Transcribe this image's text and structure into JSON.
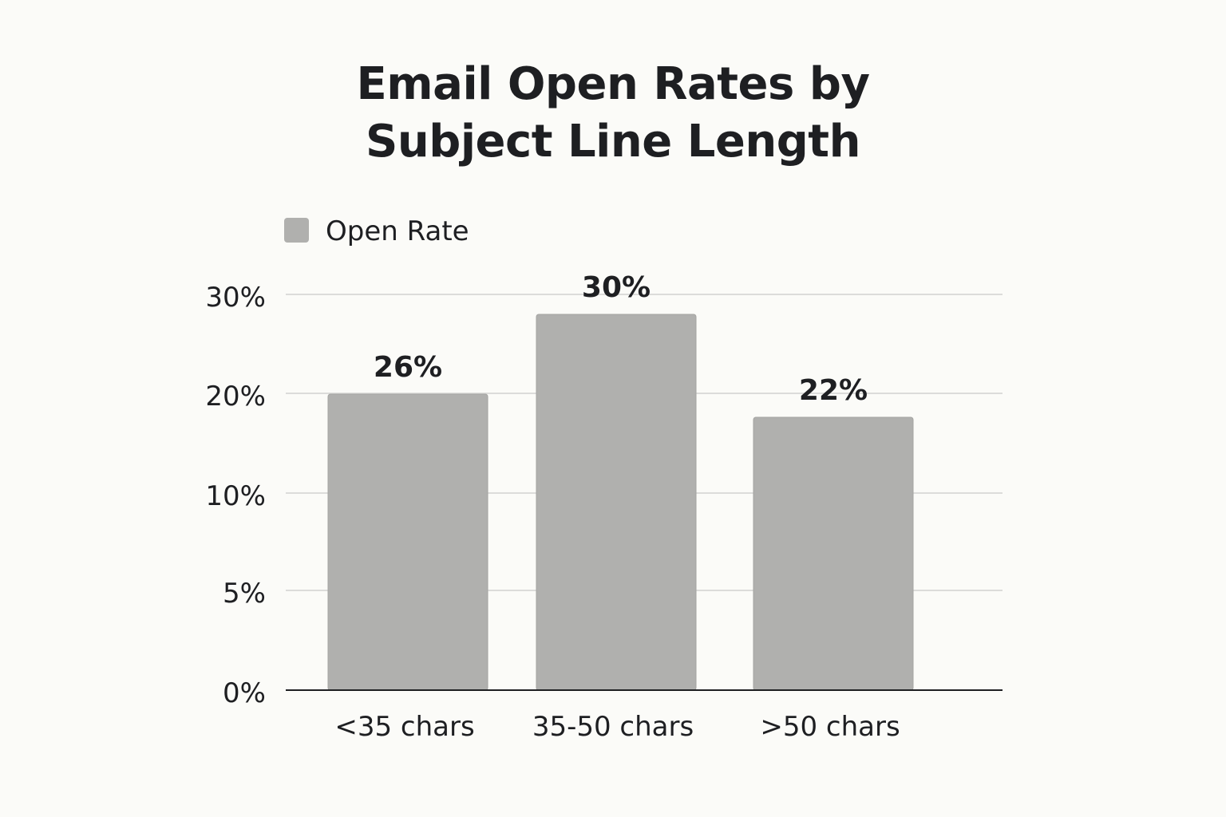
{
  "chart_data": {
    "type": "bar",
    "title_lines": [
      "Email Open Rates by",
      "Subject Line Length"
    ],
    "categories": [
      "<35 chars",
      "35-50 chars",
      ">50 chars"
    ],
    "series": [
      {
        "name": "Open Rate",
        "values": [
          26,
          30,
          22
        ],
        "value_labels": [
          "26%",
          "30%",
          "22%"
        ],
        "color": "#b0b0ae"
      }
    ],
    "y_ticks": [
      {
        "value": 0,
        "label": "0%"
      },
      {
        "value": 5,
        "label": "5%"
      },
      {
        "value": 10,
        "label": "10%"
      },
      {
        "value": 20,
        "label": "20%"
      },
      {
        "value": 30,
        "label": "30%"
      }
    ],
    "ylim": [
      0,
      30
    ],
    "grid": true,
    "legend_position": "top-left"
  }
}
